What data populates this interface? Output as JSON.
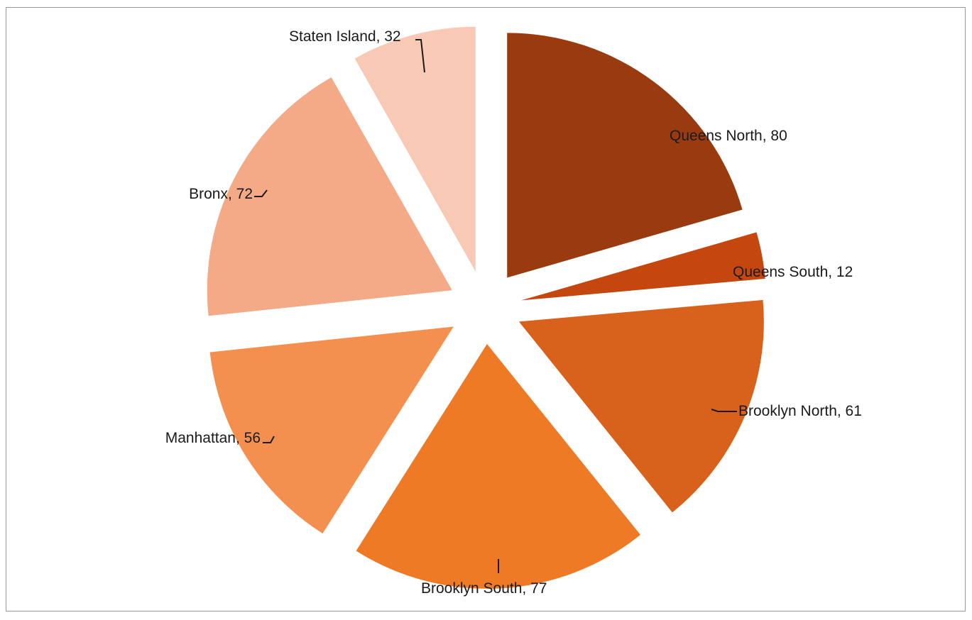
{
  "chart_data": {
    "type": "pie",
    "title": "",
    "legend": "none",
    "exploded": true,
    "slices": [
      {
        "label": "Queens North",
        "value": 80,
        "data_label": "Queens North, 80",
        "color": "#9a3b0f"
      },
      {
        "label": "Queens South",
        "value": 12,
        "data_label": "Queens South, 12",
        "color": "#c4470f"
      },
      {
        "label": "Brooklyn North",
        "value": 61,
        "data_label": "Brooklyn North, 61",
        "color": "#d8621c"
      },
      {
        "label": "Brooklyn South",
        "value": 77,
        "data_label": "Brooklyn South, 77",
        "color": "#ef7a26"
      },
      {
        "label": "Manhattan",
        "value": 56,
        "data_label": "Manhattan, 56",
        "color": "#f3904f"
      },
      {
        "label": "Bronx",
        "value": 72,
        "data_label": "Bronx, 72",
        "color": "#f4aa86"
      },
      {
        "label": "Staten Island",
        "value": 32,
        "data_label": "Staten Island, 32",
        "color": "#f8c9b4"
      }
    ]
  }
}
